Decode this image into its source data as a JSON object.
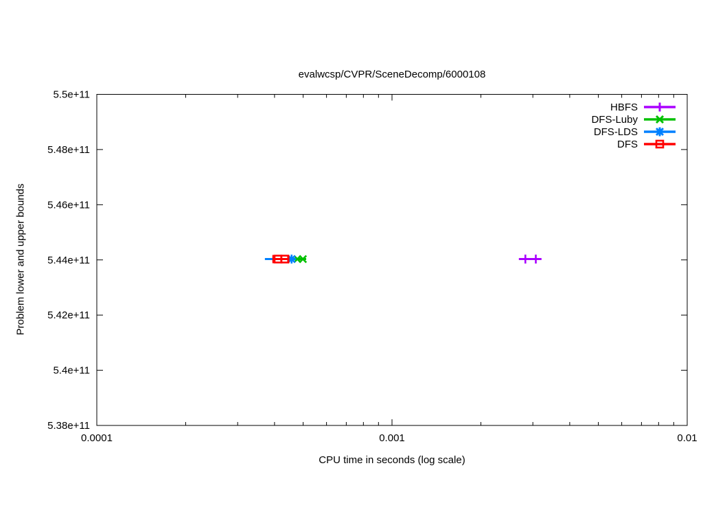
{
  "title": "evalwcsp/CVPR/SceneDecomp/6000108",
  "axes": {
    "xlabel": "CPU time in seconds (log scale)",
    "ylabel": "Problem lower and upper bounds"
  },
  "chart_data": {
    "type": "line",
    "title": "evalwcsp/CVPR/SceneDecomp/6000108",
    "xlabel": "CPU time in seconds (log scale)",
    "ylabel": "Problem lower and upper bounds",
    "x_scale": "log",
    "grid": false,
    "legend_position": "top-right-inside",
    "xlim": [
      0.0001,
      0.01
    ],
    "ylim": [
      538000000000.0,
      550000000000.0
    ],
    "x_ticks": [
      {
        "v": 0.0001,
        "label": "0.0001"
      },
      {
        "v": 0.001,
        "label": "0.001"
      },
      {
        "v": 0.01,
        "label": "0.01"
      }
    ],
    "y_ticks": [
      {
        "v": 538000000000.0,
        "label": "5.38e+11"
      },
      {
        "v": 540000000000.0,
        "label": "5.4e+11"
      },
      {
        "v": 542000000000.0,
        "label": "5.42e+11"
      },
      {
        "v": 544000000000.0,
        "label": "5.44e+11"
      },
      {
        "v": 546000000000.0,
        "label": "5.46e+11"
      },
      {
        "v": 548000000000.0,
        "label": "5.48e+11"
      },
      {
        "v": 550000000000.0,
        "label": "5.5e+11"
      }
    ],
    "series": [
      {
        "name": "HBFS",
        "color": "#aa00ff",
        "marker": "plus",
        "y": 544030000000.0,
        "line_x": [
          0.00269,
          0.00321
        ],
        "marker_x": [
          0.00283,
          0.00307
        ],
        "end_caps": false
      },
      {
        "name": "DFS-Luby",
        "color": "#00c000",
        "marker": "cross",
        "y": 544030000000.0,
        "line_x": [
          0.000465,
          0.000512
        ],
        "marker_x": [
          0.000478,
          0.000499
        ],
        "end_caps": false
      },
      {
        "name": "DFS-LDS",
        "color": "#0080ff",
        "marker": "asterisk",
        "y": 544030000000.0,
        "line_x": [
          0.000371,
          0.000465
        ],
        "marker_x": [
          0.000457
        ],
        "end_caps": false
      },
      {
        "name": "DFS",
        "color": "#ff0000",
        "marker": "open-square",
        "y": 544030000000.0,
        "line_x": [
          0.000396,
          0.000446
        ],
        "marker_x": [
          0.000411,
          0.000433
        ],
        "end_caps": true
      }
    ]
  }
}
